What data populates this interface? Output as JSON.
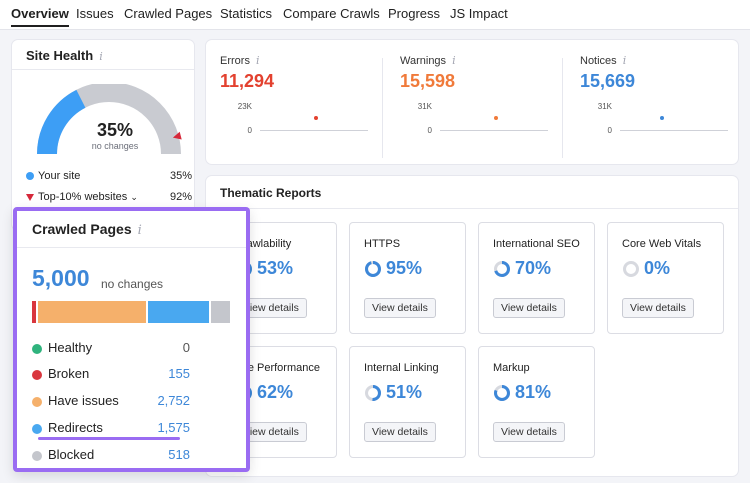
{
  "tabs": [
    "Overview",
    "Issues",
    "Crawled Pages",
    "Statistics",
    "Compare Crawls",
    "Progress",
    "JS Impact"
  ],
  "site_health": {
    "title": "Site Health",
    "info": "i",
    "value": "35%",
    "value_fraction": 0.35,
    "top10_fraction": 0.92,
    "change": "no changes",
    "legend": [
      {
        "label": "Your site",
        "value": "35%",
        "color": "#3d9ef5"
      },
      {
        "label": "Top-10% websites",
        "value": "92%",
        "color": "#d6283a"
      }
    ]
  },
  "metrics": [
    {
      "label": "Errors",
      "info": "i",
      "value": "11,294",
      "color": "#e3412f",
      "max": "23K",
      "zero": "0"
    },
    {
      "label": "Warnings",
      "info": "i",
      "value": "15,598",
      "color": "#f07a3a",
      "max": "31K",
      "zero": "0"
    },
    {
      "label": "Notices",
      "info": "i",
      "value": "15,669",
      "color": "#3d87d8",
      "max": "31K",
      "zero": "0"
    }
  ],
  "thematic": {
    "title": "Thematic Reports",
    "button_label": "View details",
    "tiles": [
      {
        "name": "Crawlability",
        "value": "53%",
        "fraction": 0.53
      },
      {
        "name": "HTTPS",
        "value": "95%",
        "fraction": 0.95
      },
      {
        "name": "International SEO",
        "value": "70%",
        "fraction": 0.7
      },
      {
        "name": "Core Web Vitals",
        "value": "0%",
        "fraction": 0
      },
      {
        "name": "Site Performance",
        "value": "62%",
        "fraction": 0.62
      },
      {
        "name": "Internal Linking",
        "value": "51%",
        "fraction": 0.51
      },
      {
        "name": "Markup",
        "value": "81%",
        "fraction": 0.81
      }
    ]
  },
  "crawled_pages": {
    "title": "Crawled Pages",
    "info": "i",
    "total": "5,000",
    "change": "no changes",
    "rows": [
      {
        "label": "Healthy",
        "value": "0",
        "color": "#2fb37d",
        "value_color": "#555555"
      },
      {
        "label": "Broken",
        "value": "155",
        "color": "#d9363e",
        "value_color": "#3d87d8"
      },
      {
        "label": "Have issues",
        "value": "2,752",
        "color": "#f5b06b",
        "value_color": "#3d87d8"
      },
      {
        "label": "Redirects",
        "value": "1,575",
        "color": "#49a8f0",
        "value_color": "#3d87d8"
      },
      {
        "label": "Blocked",
        "value": "518",
        "color": "#c4c6cc",
        "value_color": "#3d87d8"
      }
    ]
  }
}
